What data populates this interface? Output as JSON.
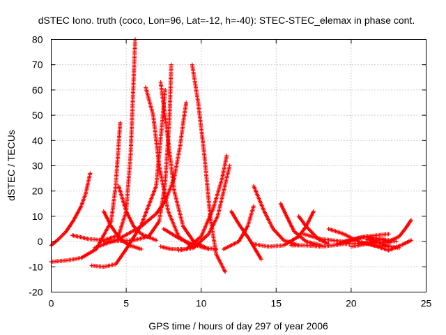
{
  "chart_data": {
    "type": "scatter",
    "title": "dSTEC Iono. truth (coco, Lon=96, Lat=-12, h=-40): STEC-STEC_elemax in phase cont.",
    "xlabel": "GPS time / hours of day 297 of year 2006",
    "ylabel": "dSTEC  / TECUs",
    "xlim": [
      0,
      25
    ],
    "ylim": [
      -20,
      80
    ],
    "xticks": [
      0,
      5,
      10,
      15,
      20,
      25
    ],
    "yticks": [
      -20,
      -10,
      0,
      10,
      20,
      30,
      40,
      50,
      60,
      70,
      80
    ],
    "grid": true,
    "marker": "plus",
    "color": "#ff0000",
    "series": [
      {
        "x": [
          0.0,
          0.5,
          1.0,
          1.5,
          2.0,
          2.3,
          2.6
        ],
        "y": [
          -1.5,
          1.0,
          4.0,
          8.5,
          14.0,
          19.0,
          27.0
        ]
      },
      {
        "x": [
          0.0,
          1.0,
          2.0,
          3.0,
          4.0,
          4.3,
          4.6
        ],
        "y": [
          -8.0,
          -7.5,
          -6.5,
          -3.0,
          8.0,
          22.0,
          47.0
        ]
      },
      {
        "x": [
          1.4,
          2.5,
          3.5,
          4.5,
          5.0,
          5.3,
          5.6
        ],
        "y": [
          2.5,
          1.0,
          0.5,
          2.5,
          12.0,
          35.0,
          80.0
        ]
      },
      {
        "x": [
          2.7,
          3.5,
          4.3,
          5.0,
          6.0,
          7.0,
          7.6
        ],
        "y": [
          -9.5,
          -10.0,
          -9.0,
          -3.0,
          6.5,
          22.0,
          60.0
        ]
      },
      {
        "x": [
          3.5,
          5.5,
          6.5,
          7.2,
          7.6,
          7.9,
          8.0
        ],
        "y": [
          0.0,
          0.5,
          2.0,
          8.0,
          23.0,
          50.0,
          70.0
        ]
      },
      {
        "x": [
          2.9,
          4.5,
          6.0,
          7.0,
          7.6,
          8.2,
          8.6,
          8.8,
          9.0
        ],
        "y": [
          -2.5,
          1.0,
          6.0,
          11.0,
          16.0,
          25.0,
          38.0,
          47.0,
          55.0
        ]
      },
      {
        "x": [
          3.5,
          4.0,
          4.6,
          5.2,
          6.0
        ],
        "y": [
          12.0,
          6.0,
          1.0,
          -1.5,
          -3.0
        ]
      },
      {
        "x": [
          4.5,
          5.0,
          5.5,
          6.0,
          7.0
        ],
        "y": [
          22.0,
          12.0,
          6.0,
          3.0,
          0.5
        ]
      },
      {
        "x": [
          6.3,
          6.8,
          7.2,
          7.8,
          8.5,
          9.5
        ],
        "y": [
          61.0,
          50.0,
          30.0,
          12.0,
          2.0,
          -2.5
        ]
      },
      {
        "x": [
          7.3,
          7.8,
          8.2,
          8.8,
          9.5,
          10.5
        ],
        "y": [
          63.0,
          40.0,
          20.0,
          6.0,
          0.0,
          -3.0
        ]
      },
      {
        "x": [
          9.4,
          9.8,
          10.2,
          10.6,
          11.0,
          11.6
        ],
        "y": [
          70.0,
          55.0,
          35.0,
          10.0,
          -5.0,
          -12.0
        ]
      },
      {
        "x": [
          7.3,
          8.0,
          9.0,
          10.0,
          10.8,
          11.4,
          11.7
        ],
        "y": [
          -2.0,
          -3.0,
          -3.0,
          2.0,
          13.0,
          25.0,
          34.0
        ]
      },
      {
        "x": [
          8.5,
          9.5,
          10.5,
          11.1,
          11.5,
          11.9
        ],
        "y": [
          -3.5,
          -2.5,
          3.0,
          10.0,
          20.0,
          30.0
        ]
      },
      {
        "x": [
          7.5,
          8.6,
          9.4,
          10.2,
          11.0
        ],
        "y": [
          5.0,
          1.0,
          -1.0,
          -2.5,
          -3.0
        ]
      },
      {
        "x": [
          11.5,
          12.5,
          13.1,
          13.5
        ],
        "y": [
          -3.0,
          0.0,
          6.0,
          14.0
        ]
      },
      {
        "x": [
          12.0,
          12.5,
          13.2,
          14.0
        ],
        "y": [
          12.0,
          7.0,
          1.0,
          -7.0
        ]
      },
      {
        "x": [
          13.5,
          14.2,
          14.8,
          15.5,
          16.5
        ],
        "y": [
          22.0,
          12.0,
          5.0,
          0.5,
          -1.5
        ]
      },
      {
        "x": [
          13.5,
          14.5,
          15.5,
          16.5,
          17.0,
          17.5
        ],
        "y": [
          -1.0,
          -2.0,
          -1.5,
          2.0,
          6.0,
          12.0
        ]
      },
      {
        "x": [
          15.3,
          15.7,
          16.2,
          17.0,
          18.0
        ],
        "y": [
          15.0,
          10.0,
          4.0,
          0.0,
          -1.5
        ]
      },
      {
        "x": [
          16.5,
          17.0,
          17.8,
          18.5
        ],
        "y": [
          10.0,
          6.0,
          1.0,
          -1.0
        ]
      },
      {
        "x": [
          16.0,
          17.0,
          18.0,
          19.5,
          21.0,
          22.5,
          23.5,
          24.0
        ],
        "y": [
          -1.5,
          -1.5,
          -2.0,
          -1.0,
          -0.5,
          -3.5,
          -1.0,
          0.5
        ]
      },
      {
        "x": [
          16.8,
          18.0,
          19.5,
          21.0,
          22.5
        ],
        "y": [
          3.0,
          1.0,
          0.0,
          2.0,
          3.0
        ]
      },
      {
        "x": [
          18.5,
          19.5,
          20.5,
          21.5,
          22.5
        ],
        "y": [
          5.0,
          3.0,
          0.0,
          -1.5,
          -2.0
        ]
      },
      {
        "x": [
          19.0,
          20.0,
          21.0,
          22.0,
          22.6
        ],
        "y": [
          -1.0,
          0.5,
          2.0,
          1.0,
          -0.5
        ]
      },
      {
        "x": [
          20.5,
          21.5,
          22.5,
          23.2,
          23.6,
          24.0
        ],
        "y": [
          -1.0,
          -0.5,
          0.0,
          2.0,
          5.0,
          8.5
        ]
      },
      {
        "x": [
          19.5,
          20.5,
          21.0,
          21.6
        ],
        "y": [
          -0.5,
          1.5,
          2.0,
          0.5
        ]
      },
      {
        "x": [
          21.0,
          21.8,
          22.6,
          23.2
        ],
        "y": [
          1.0,
          -0.5,
          -2.0,
          -2.5
        ]
      },
      {
        "x": [
          20.0,
          21.0,
          22.0,
          23.0
        ],
        "y": [
          -2.0,
          -1.0,
          1.0,
          0.0
        ]
      }
    ]
  }
}
